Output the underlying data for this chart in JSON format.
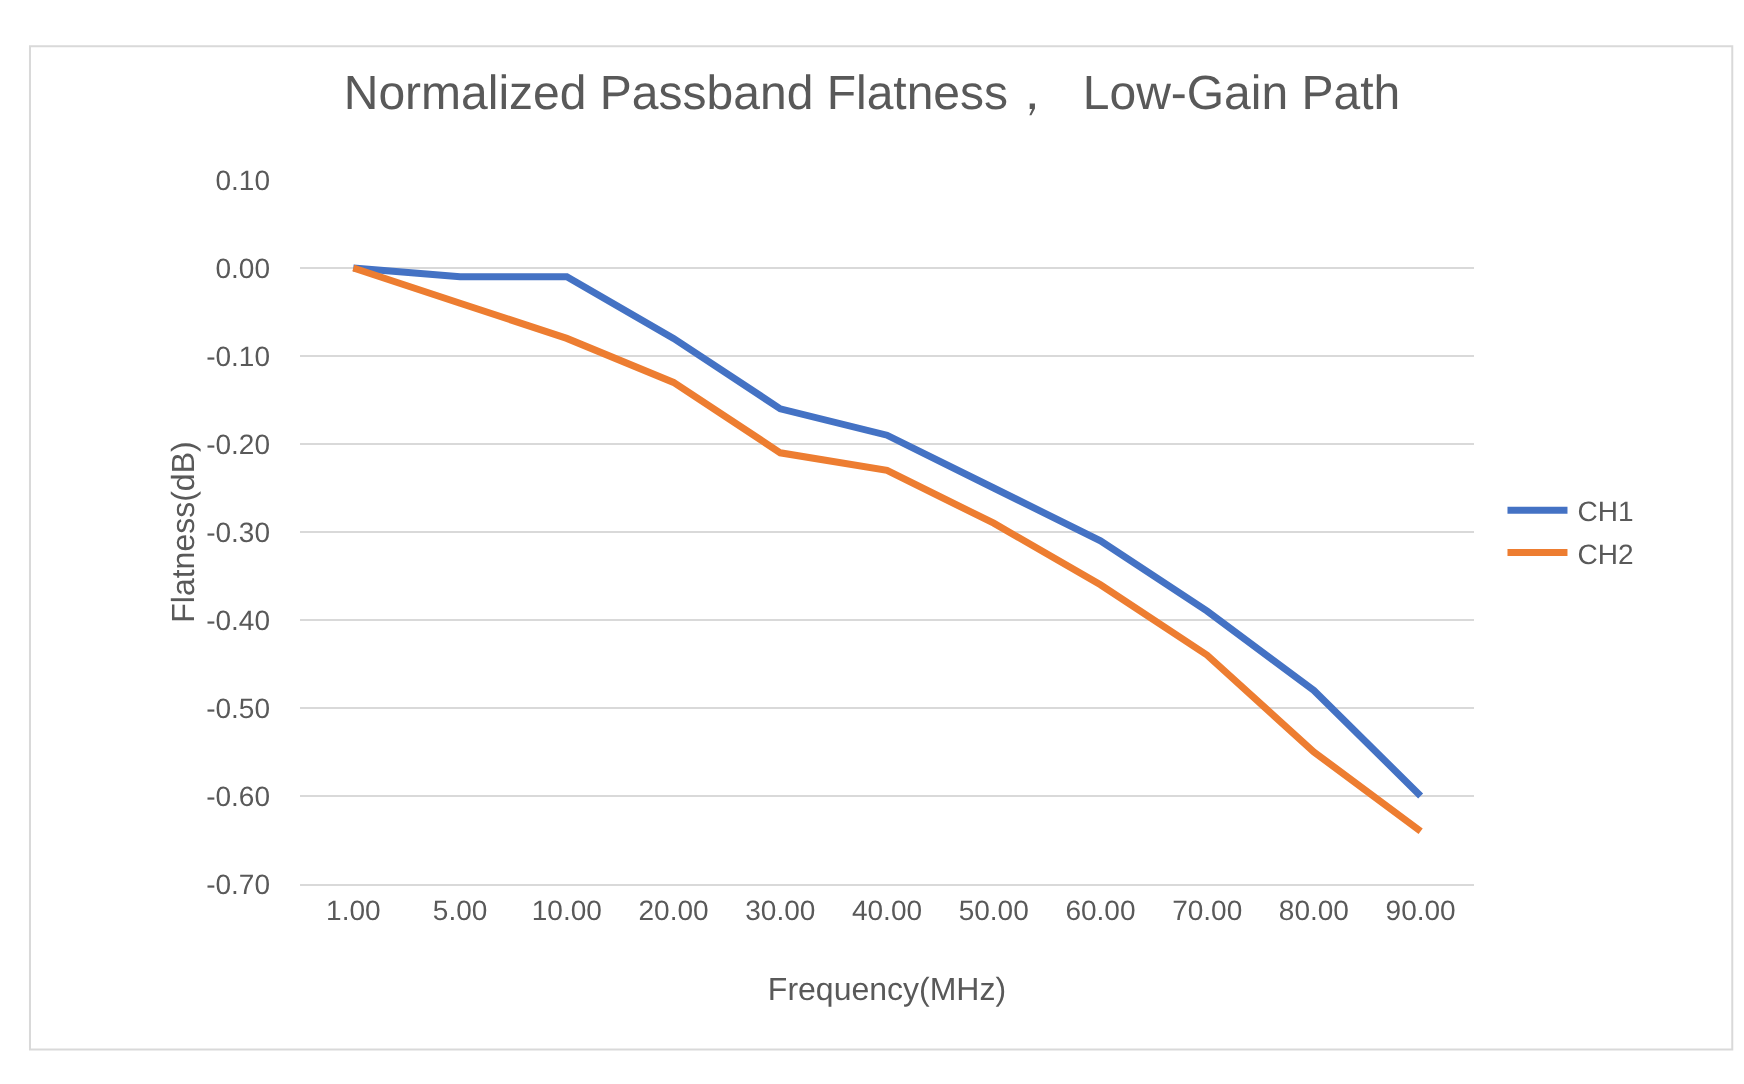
{
  "chart_data": {
    "type": "line",
    "title": "Normalized Passband Flatness，  Low-Gain Path",
    "xlabel": "Frequency(MHz)",
    "ylabel": "Flatness(dB)",
    "categories": [
      "1.00",
      "5.00",
      "10.00",
      "20.00",
      "30.00",
      "40.00",
      "50.00",
      "60.00",
      "70.00",
      "80.00",
      "90.00"
    ],
    "series": [
      {
        "name": "CH1",
        "color": "#4472c4",
        "values": [
          0,
          -0.01,
          -0.01,
          -0.08,
          -0.16,
          -0.19,
          -0.25,
          -0.31,
          -0.39,
          -0.48,
          -0.6
        ]
      },
      {
        "name": "CH2",
        "color": "#ed7d31",
        "values": [
          0,
          -0.04,
          -0.08,
          -0.13,
          -0.21,
          -0.23,
          -0.29,
          -0.36,
          -0.44,
          -0.55,
          -0.64
        ]
      }
    ],
    "ylim": [
      -0.7,
      0.1
    ],
    "yticks": [
      {
        "value": -0.7,
        "label": "-0.70"
      },
      {
        "value": -0.6,
        "label": "-0.60"
      },
      {
        "value": -0.5,
        "label": "-0.50"
      },
      {
        "value": -0.4,
        "label": "-0.40"
      },
      {
        "value": -0.3,
        "label": "-0.30"
      },
      {
        "value": -0.2,
        "label": "-0.20"
      },
      {
        "value": -0.1,
        "label": "-0.10"
      },
      {
        "value": 0,
        "label": "0.00"
      },
      {
        "value": 0.1,
        "label": "0.10"
      }
    ],
    "grid": "y",
    "legend": "right",
    "marker": "none",
    "line_style": "solid"
  }
}
